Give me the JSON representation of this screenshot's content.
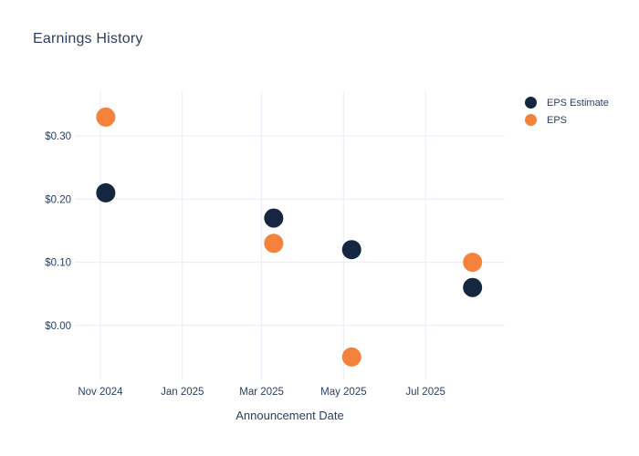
{
  "chart_data": {
    "type": "scatter",
    "title": "Earnings History",
    "xlabel": "Announcement Date",
    "ylabel": "",
    "grid": true,
    "legend_position": "outside-top-right",
    "xlim": [
      "2024-10-13",
      "2025-08-29"
    ],
    "ylim": [
      -0.087,
      0.371
    ],
    "x_ticks": [
      {
        "date": "2024-11-01",
        "label": "Nov 2024"
      },
      {
        "date": "2025-01-01",
        "label": "Jan 2025"
      },
      {
        "date": "2025-03-01",
        "label": "Mar 2025"
      },
      {
        "date": "2025-05-01",
        "label": "May 2025"
      },
      {
        "date": "2025-07-01",
        "label": "Jul 2025"
      }
    ],
    "y_ticks": [
      {
        "value": 0.0,
        "label": "$0.00"
      },
      {
        "value": 0.1,
        "label": "$0.10"
      },
      {
        "value": 0.2,
        "label": "$0.20"
      },
      {
        "value": 0.3,
        "label": "$0.30"
      }
    ],
    "series": [
      {
        "name": "EPS Estimate",
        "color": "#142640",
        "points": [
          {
            "x": "2024-11-05",
            "y": 0.21
          },
          {
            "x": "2025-03-10",
            "y": 0.17
          },
          {
            "x": "2025-05-07",
            "y": 0.12
          },
          {
            "x": "2025-08-05",
            "y": 0.06
          }
        ]
      },
      {
        "name": "EPS",
        "color": "#f4823c",
        "points": [
          {
            "x": "2024-11-05",
            "y": 0.33
          },
          {
            "x": "2025-03-10",
            "y": 0.13
          },
          {
            "x": "2025-05-07",
            "y": -0.05
          },
          {
            "x": "2025-08-05",
            "y": 0.1
          }
        ]
      }
    ],
    "marker_diameter_px": 21,
    "colors": {
      "background": "#ffffff",
      "grid": "#ebf0f8",
      "text": "#2a3f5f"
    }
  }
}
